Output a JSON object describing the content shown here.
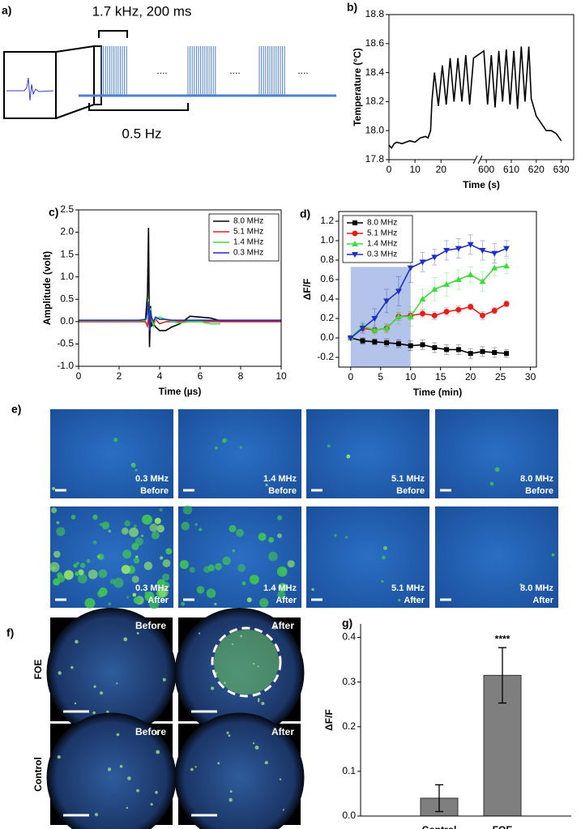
{
  "stimulus": {
    "label": "a)",
    "pulse": "1.7 kHz, 200 ms",
    "rate": "0.5 Hz",
    "ellipsis": "...."
  },
  "chart_data": [
    {
      "type": "line",
      "label": "b)",
      "xlabel": "Time (s)",
      "ylabel": "Temperature (°C)",
      "x": [
        0,
        1,
        2,
        3,
        5,
        8,
        10,
        12,
        14,
        15,
        16,
        16.5,
        17.5,
        19,
        20.5,
        22,
        23.5,
        25,
        26.5,
        28,
        29.5,
        31,
        32.5,
        599,
        600.5,
        602,
        603.5,
        605,
        606.5,
        608,
        609.5,
        611,
        612.5,
        614,
        615.5,
        617,
        618,
        620,
        622,
        624,
        626,
        628,
        630
      ],
      "series": [
        {
          "color": "#000000",
          "values": [
            17.9,
            17.88,
            17.91,
            17.92,
            17.91,
            17.93,
            17.92,
            17.95,
            17.96,
            17.95,
            18.0,
            18.2,
            18.4,
            18.17,
            18.45,
            18.18,
            18.5,
            18.2,
            18.5,
            18.2,
            18.52,
            18.18,
            18.5,
            18.55,
            18.18,
            18.52,
            18.16,
            18.55,
            18.2,
            18.56,
            18.18,
            18.55,
            18.15,
            18.58,
            18.2,
            18.58,
            18.22,
            18.1,
            18.05,
            18.0,
            18.0,
            17.98,
            17.93
          ]
        }
      ],
      "xlim": [
        0,
        635
      ],
      "xbreak": [
        33,
        598
      ],
      "xticks": [
        0,
        10,
        20,
        600,
        610,
        620,
        630
      ],
      "ylim": [
        17.8,
        18.8
      ],
      "yticks": [
        17.8,
        {
          "value": 18.0,
          "label": "18.0"
        },
        18.2,
        18.4,
        18.6,
        18.8
      ]
    },
    {
      "type": "line",
      "label": "c)",
      "xlabel": "Time (µs)",
      "ylabel": "Amplitude (volt)",
      "legend": "upper right",
      "x": [
        0,
        1,
        2,
        3,
        3.3,
        3.4,
        3.45,
        3.5,
        3.55,
        3.6,
        3.7,
        3.8,
        4.0,
        4.3,
        4.6,
        5,
        5.5,
        6,
        6.5,
        7,
        8,
        9,
        10
      ],
      "series": [
        {
          "name": "8.0 MHz",
          "color": "#000000",
          "values": [
            0.02,
            0.02,
            0.02,
            0.02,
            0.03,
            0.6,
            2.1,
            -0.57,
            0.35,
            -0.1,
            -0.05,
            -0.12,
            -0.2,
            -0.2,
            -0.12,
            -0.05,
            0.12,
            0.1,
            0.08,
            0.02,
            0.02,
            0.02,
            0.02
          ]
        },
        {
          "name": "5.1 MHz",
          "color": "#e0201b",
          "values": [
            0,
            0,
            0,
            0,
            0,
            -0.1,
            0.1,
            -0.15,
            0.05,
            0,
            -0.05,
            0.05,
            -0.05,
            0,
            0,
            0,
            0,
            0,
            0,
            0,
            0,
            0,
            0
          ]
        },
        {
          "name": "1.4 MHz",
          "color": "#3ddc3d",
          "values": [
            0.02,
            0.02,
            0.02,
            0.02,
            0.03,
            0.1,
            0.5,
            -0.1,
            0.3,
            0.1,
            -0.1,
            0.05,
            0.1,
            0.05,
            0,
            -0.03,
            0,
            0,
            -0.05,
            -0.05,
            null,
            null,
            null
          ]
        },
        {
          "name": "0.3 MHz",
          "color": "#1f2fc4",
          "values": [
            0.03,
            0.03,
            0.03,
            0.03,
            0.05,
            0.2,
            0.45,
            -0.2,
            0.25,
            0.1,
            0,
            0.1,
            0.05,
            0.05,
            0.03,
            0.03,
            0.03,
            0.03,
            0.03,
            0.03,
            0.03,
            0.03,
            0.03
          ]
        }
      ],
      "xlim": [
        0,
        10
      ],
      "xticks": [
        0,
        2,
        4,
        6,
        8,
        10
      ],
      "ylim": [
        -1,
        2.5
      ],
      "yticks": [
        {
          "value": -1,
          "label": "-1.0"
        },
        -0.5,
        {
          "value": 0,
          "label": "0.0"
        },
        0.5,
        {
          "value": 1,
          "label": "1.0"
        },
        1.5,
        {
          "value": 2,
          "label": "2.0"
        },
        2.5
      ]
    },
    {
      "type": "line",
      "label": "d)",
      "xlabel": "Time (min)",
      "ylabel": "ΔF/F",
      "legend": "upper left",
      "highlight": {
        "from": 0,
        "to": 10,
        "top": 0.73,
        "color": "#b3c3ea"
      },
      "x": [
        0,
        2,
        4,
        6,
        8,
        10,
        12,
        14,
        16,
        18,
        20,
        22,
        24,
        26
      ],
      "series": [
        {
          "name": "8.0 MHz",
          "color": "#000000",
          "marker": "square",
          "values": [
            0,
            -0.03,
            -0.04,
            -0.05,
            -0.06,
            -0.08,
            -0.07,
            -0.1,
            -0.12,
            -0.12,
            -0.16,
            -0.14,
            -0.15,
            -0.16
          ],
          "errors": [
            0,
            0.03,
            0.03,
            0.04,
            0.04,
            0.05,
            0.05,
            0.05,
            0.05,
            0.05,
            0.05,
            0.05,
            0.05,
            0.04
          ]
        },
        {
          "name": "5.1 MHz",
          "color": "#e0201b",
          "marker": "circle",
          "values": [
            0,
            0.1,
            0.08,
            0.1,
            0.22,
            0.23,
            0.25,
            0.23,
            0.27,
            0.29,
            0.32,
            0.23,
            0.28,
            0.35
          ],
          "errors": [
            0,
            0.03,
            0.03,
            0.04,
            0.04,
            0.04,
            0.04,
            0.04,
            0.04,
            0.04,
            0.03,
            0.04,
            0.03,
            0.03
          ]
        },
        {
          "name": "1.4 MHz",
          "color": "#3ddc3d",
          "marker": "triangle-up",
          "values": [
            0,
            0.12,
            0.08,
            0.1,
            0.22,
            0.22,
            0.4,
            0.5,
            0.55,
            0.6,
            0.65,
            0.58,
            0.72,
            0.74
          ],
          "errors": [
            0,
            0.05,
            0.05,
            0.05,
            0.08,
            0.1,
            0.1,
            0.12,
            0.12,
            0.1,
            0.08,
            0.1,
            0.08,
            0.08
          ]
        },
        {
          "name": "0.3 MHz",
          "color": "#1f2fc4",
          "marker": "triangle-down",
          "values": [
            0,
            0.1,
            0.2,
            0.38,
            0.48,
            0.72,
            0.78,
            0.83,
            0.9,
            0.92,
            0.96,
            0.9,
            0.87,
            0.92
          ],
          "errors": [
            0,
            0.05,
            0.1,
            0.12,
            0.15,
            0.15,
            0.1,
            0.08,
            0.1,
            0.1,
            0.1,
            0.1,
            0.1,
            0.08
          ]
        }
      ],
      "xlim": [
        -2,
        31
      ],
      "xticks": [
        0,
        5,
        10,
        15,
        20,
        25,
        30
      ],
      "ylim": [
        -0.3,
        1.3
      ],
      "yticks": [
        -0.2,
        {
          "value": 0,
          "label": "0.0"
        },
        0.2,
        0.4,
        0.6,
        0.8,
        {
          "value": 1,
          "label": "1.0"
        },
        1.2
      ]
    },
    {
      "type": "bar",
      "label": "g)",
      "ylabel": "ΔF/F",
      "annotation": "****",
      "color": "#7f7f7f",
      "categories": [
        "Control",
        "FOE"
      ],
      "values": [
        0.04,
        0.315
      ],
      "errors": [
        0.03,
        0.062
      ],
      "ylim": [
        0,
        0.43
      ],
      "yticks": [
        {
          "value": 0,
          "label": "0.0"
        },
        0.1,
        0.2,
        0.3,
        0.4
      ]
    }
  ],
  "images_e": {
    "label": "e)",
    "tiles": [
      {
        "frequency": "0.3 MHz",
        "state": "Before"
      },
      {
        "frequency": "1.4 MHz",
        "state": "Before"
      },
      {
        "frequency": "5.1 MHz",
        "state": "Before"
      },
      {
        "frequency": "8.0 MHz",
        "state": "Before"
      },
      {
        "frequency": "0.3 MHz",
        "state": "After"
      },
      {
        "frequency": "1.4 MHz",
        "state": "After"
      },
      {
        "frequency": "5.1 MHz",
        "state": "After"
      },
      {
        "frequency": "8.0 MHz",
        "state": "After"
      }
    ]
  },
  "images_f": {
    "label": "f)",
    "rows": [
      "FOE",
      "Control"
    ],
    "states": [
      "Before",
      "After"
    ]
  }
}
